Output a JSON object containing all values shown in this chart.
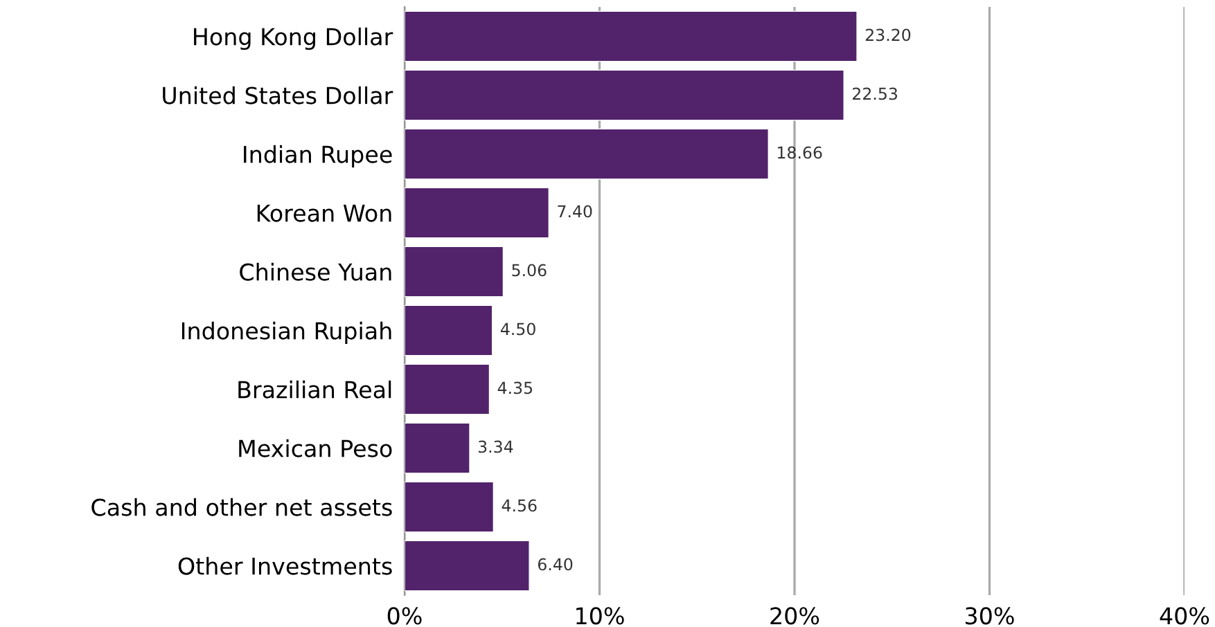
{
  "chart_data": {
    "type": "bar",
    "orientation": "horizontal",
    "categories": [
      "Hong Kong Dollar",
      "United States Dollar",
      "Indian Rupee",
      "Korean Won",
      "Chinese Yuan",
      "Indonesian Rupiah",
      "Brazilian Real",
      "Mexican Peso",
      "Cash and other net assets",
      "Other Investments"
    ],
    "values": [
      23.2,
      22.53,
      18.66,
      7.4,
      5.06,
      4.5,
      4.35,
      3.34,
      4.56,
      6.4
    ],
    "value_labels": [
      "23.20",
      "22.53",
      "18.66",
      "7.40",
      "5.06",
      "4.50",
      "4.35",
      "3.34",
      "4.56",
      "6.40"
    ],
    "color": "#52236a",
    "xlim": [
      0,
      40
    ],
    "xticks": [
      {
        "value": 0,
        "label": "0%"
      },
      {
        "value": 10,
        "label": "10%"
      },
      {
        "value": 20,
        "label": "20%"
      },
      {
        "value": 30,
        "label": "30%"
      },
      {
        "value": 40,
        "label": "40%"
      }
    ],
    "grid": "x",
    "legend": false
  }
}
